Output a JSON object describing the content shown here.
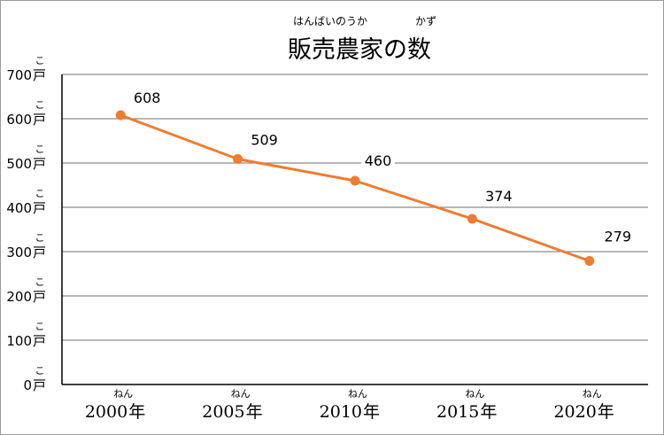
{
  "chart_data": {
    "type": "line",
    "title": "販売農家の数",
    "title_ruby": [
      {
        "text": "はんばいのうか",
        "over": "販売農家"
      },
      {
        "text": "かず",
        "over": "数"
      }
    ],
    "categories": [
      {
        "year": "2000",
        "unit": "年",
        "ruby": "ねん"
      },
      {
        "year": "2005",
        "unit": "年",
        "ruby": "ねん"
      },
      {
        "year": "2010",
        "unit": "年",
        "ruby": "ねん"
      },
      {
        "year": "2015",
        "unit": "年",
        "ruby": "ねん"
      },
      {
        "year": "2020",
        "unit": "年",
        "ruby": "ねん"
      }
    ],
    "series": [
      {
        "values": [
          608,
          509,
          460,
          374,
          279
        ],
        "color": "#ED7D31"
      }
    ],
    "data_labels": [
      "608",
      "509",
      "460",
      "374",
      "279"
    ],
    "y_ticks": [
      0,
      100,
      200,
      300,
      400,
      500,
      600,
      700
    ],
    "y_unit": "戸",
    "y_unit_ruby": "こ",
    "ylim": [
      0,
      700
    ],
    "grid": true,
    "gridline_color": "#8c8c8c",
    "legend": "none"
  }
}
